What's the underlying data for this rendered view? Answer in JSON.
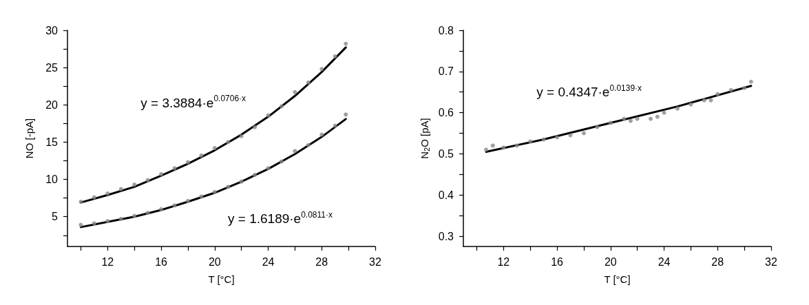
{
  "chart_data": [
    {
      "type": "scatter",
      "xlabel": "T [°C]",
      "ylabel": "NO [-pA]",
      "xlim": [
        9,
        32
      ],
      "xticks": [
        {
          "value": 10,
          "label": null
        },
        12,
        {
          "value": 14,
          "label": null
        },
        16,
        {
          "value": 18,
          "label": null
        },
        20,
        {
          "value": 22,
          "label": null
        },
        24,
        {
          "value": 26,
          "label": null
        },
        28,
        {
          "value": 30,
          "label": null
        },
        32
      ],
      "ylim": [
        1,
        30
      ],
      "yticks": [
        {
          "value": 2.5,
          "label": null
        },
        5,
        {
          "value": 7.5,
          "label": null
        },
        10,
        {
          "value": 12.5,
          "label": null
        },
        15,
        {
          "value": 17.5,
          "label": null
        },
        20,
        {
          "value": 22.5,
          "label": null
        },
        25,
        {
          "value": 27.5,
          "label": null
        },
        30
      ],
      "grid": false,
      "line_style": "solid",
      "series": [
        {
          "marker": "circle",
          "color": "#888888",
          "x": [
            10,
            11,
            12,
            13,
            14,
            15,
            16,
            17,
            18,
            19,
            20,
            21,
            22,
            23,
            24,
            25,
            26,
            27,
            28,
            29,
            29.8
          ],
          "values": [
            7.0,
            7.6,
            8.1,
            8.7,
            9.3,
            9.9,
            10.7,
            11.5,
            12.3,
            13.2,
            14.2,
            15.0,
            15.8,
            17.0,
            18.6,
            19.8,
            21.7,
            23.0,
            24.8,
            26.5,
            28.2
          ]
        },
        {
          "marker": "circle",
          "color": "#888888",
          "x": [
            10,
            11,
            12,
            13,
            14,
            15,
            16,
            17,
            18,
            19,
            20,
            21,
            22,
            23,
            24,
            25,
            26,
            27,
            28,
            29,
            29.8
          ],
          "values": [
            3.9,
            4.1,
            4.4,
            4.7,
            5.1,
            5.5,
            6.0,
            6.5,
            7.1,
            7.7,
            8.3,
            9.0,
            9.7,
            10.6,
            11.5,
            12.4,
            13.8,
            14.6,
            16.0,
            17.2,
            18.7
          ]
        },
        {
          "type": "line",
          "marker": "none",
          "color": "#000000",
          "x": [
            10,
            12,
            14,
            16,
            18,
            20,
            22,
            24,
            26,
            28,
            29.8
          ],
          "values": [
            6.9,
            7.9,
            9.0,
            10.5,
            12.1,
            13.9,
            16.0,
            18.4,
            21.2,
            24.4,
            27.7
          ]
        },
        {
          "type": "line",
          "marker": "none",
          "color": "#000000",
          "x": [
            10,
            12,
            14,
            16,
            18,
            20,
            22,
            24,
            26,
            28,
            29.8
          ],
          "values": [
            3.6,
            4.3,
            5.0,
            5.9,
            7.0,
            8.2,
            9.7,
            11.4,
            13.4,
            15.7,
            18.1
          ]
        }
      ],
      "annotations": [
        "y = 3.3884·e$^{0.0706·x}$",
        "y = 1.6189·e$^{0.0811·x}$"
      ]
    },
    {
      "type": "scatter",
      "xlabel": "T [°C]",
      "ylabel": "N$_{2}$O [pA]",
      "xlim": [
        9,
        32
      ],
      "xticks": [
        {
          "value": 10,
          "label": null
        },
        12,
        {
          "value": 14,
          "label": null
        },
        16,
        {
          "value": 18,
          "label": null
        },
        20,
        {
          "value": 22,
          "label": null
        },
        24,
        {
          "value": 26,
          "label": null
        },
        28,
        {
          "value": 30,
          "label": null
        },
        32
      ],
      "ylim": [
        0.275,
        0.8
      ],
      "yticks": [
        0.3,
        {
          "value": 0.35,
          "label": null
        },
        0.4,
        {
          "value": 0.45,
          "label": null
        },
        0.5,
        {
          "value": 0.55,
          "label": null
        },
        0.6,
        {
          "value": 0.65,
          "label": null
        },
        0.7,
        {
          "value": 0.75,
          "label": null
        },
        0.8
      ],
      "grid": false,
      "line_style": "solid",
      "series": [
        {
          "marker": "circle",
          "color": "#888888",
          "x": [
            10.7,
            11.2,
            12,
            13,
            14,
            15,
            16,
            17,
            18,
            19,
            20,
            21,
            21.5,
            22,
            23,
            23.5,
            24,
            25,
            26,
            27,
            27.5,
            28,
            29,
            30,
            30.5
          ],
          "values": [
            0.51,
            0.52,
            0.515,
            0.52,
            0.53,
            0.535,
            0.54,
            0.545,
            0.55,
            0.565,
            0.575,
            0.585,
            0.58,
            0.585,
            0.585,
            0.59,
            0.6,
            0.61,
            0.62,
            0.63,
            0.63,
            0.645,
            0.655,
            0.66,
            0.675
          ]
        },
        {
          "type": "line",
          "marker": "none",
          "color": "#000000",
          "x": [
            10.7,
            15,
            20,
            25,
            30.5
          ],
          "values": [
            0.505,
            0.535,
            0.575,
            0.615,
            0.665
          ]
        }
      ],
      "annotations": [
        "y = 0.4347·e$^{0.0139·x}$"
      ]
    }
  ]
}
